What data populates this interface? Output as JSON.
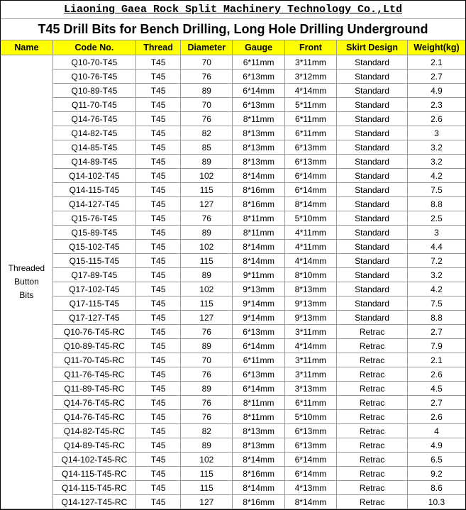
{
  "company": "Liaoning Gaea Rock Split Machinery Technology Co.,Ltd",
  "title": "T45 Drill Bits for Bench Drilling, Long Hole Drilling Underground",
  "columns": [
    "Name",
    "Code No.",
    "Thread",
    "Diameter",
    "Gauge",
    "Front",
    "Skirt Design",
    "Weight(kg)"
  ],
  "category_name": "Threaded\nButton\nBits",
  "rows": [
    {
      "code": "Q10-70-T45",
      "thread": "T45",
      "diameter": "70",
      "gauge": "6*11mm",
      "front": "3*11mm",
      "skirt": "Standard",
      "weight": "2.1"
    },
    {
      "code": "Q10-76-T45",
      "thread": "T45",
      "diameter": "76",
      "gauge": "6*13mm",
      "front": "3*12mm",
      "skirt": "Standard",
      "weight": "2.7"
    },
    {
      "code": "Q10-89-T45",
      "thread": "T45",
      "diameter": "89",
      "gauge": "6*14mm",
      "front": "4*14mm",
      "skirt": "Standard",
      "weight": "4.9"
    },
    {
      "code": "Q11-70-T45",
      "thread": "T45",
      "diameter": "70",
      "gauge": "6*13mm",
      "front": "5*11mm",
      "skirt": "Standard",
      "weight": "2.3"
    },
    {
      "code": "Q14-76-T45",
      "thread": "T45",
      "diameter": "76",
      "gauge": "8*11mm",
      "front": "6*11mm",
      "skirt": "Standard",
      "weight": "2.6"
    },
    {
      "code": "Q14-82-T45",
      "thread": "T45",
      "diameter": "82",
      "gauge": "8*13mm",
      "front": "6*11mm",
      "skirt": "Standard",
      "weight": "3"
    },
    {
      "code": "Q14-85-T45",
      "thread": "T45",
      "diameter": "85",
      "gauge": "8*13mm",
      "front": "6*13mm",
      "skirt": "Standard",
      "weight": "3.2"
    },
    {
      "code": "Q14-89-T45",
      "thread": "T45",
      "diameter": "89",
      "gauge": "8*13mm",
      "front": "6*13mm",
      "skirt": "Standard",
      "weight": "3.2"
    },
    {
      "code": "Q14-102-T45",
      "thread": "T45",
      "diameter": "102",
      "gauge": "8*14mm",
      "front": "6*14mm",
      "skirt": "Standard",
      "weight": "4.2"
    },
    {
      "code": "Q14-115-T45",
      "thread": "T45",
      "diameter": "115",
      "gauge": "8*16mm",
      "front": "6*14mm",
      "skirt": "Standard",
      "weight": "7.5"
    },
    {
      "code": "Q14-127-T45",
      "thread": "T45",
      "diameter": "127",
      "gauge": "8*16mm",
      "front": "8*14mm",
      "skirt": "Standard",
      "weight": "8.8"
    },
    {
      "code": "Q15-76-T45",
      "thread": "T45",
      "diameter": "76",
      "gauge": "8*11mm",
      "front": "5*10mm",
      "skirt": "Standard",
      "weight": "2.5"
    },
    {
      "code": "Q15-89-T45",
      "thread": "T45",
      "diameter": "89",
      "gauge": "8*11mm",
      "front": "4*11mm",
      "skirt": "Standard",
      "weight": "3"
    },
    {
      "code": "Q15-102-T45",
      "thread": "T45",
      "diameter": "102",
      "gauge": "8*14mm",
      "front": "4*11mm",
      "skirt": "Standard",
      "weight": "4.4"
    },
    {
      "code": "Q15-115-T45",
      "thread": "T45",
      "diameter": "115",
      "gauge": "8*14mm",
      "front": "4*14mm",
      "skirt": "Standard",
      "weight": "7.2"
    },
    {
      "code": "Q17-89-T45",
      "thread": "T45",
      "diameter": "89",
      "gauge": "9*11mm",
      "front": "8*10mm",
      "skirt": "Standard",
      "weight": "3.2"
    },
    {
      "code": "Q17-102-T45",
      "thread": "T45",
      "diameter": "102",
      "gauge": "9*13mm",
      "front": "8*13mm",
      "skirt": "Standard",
      "weight": "4.2"
    },
    {
      "code": "Q17-115-T45",
      "thread": "T45",
      "diameter": "115",
      "gauge": "9*14mm",
      "front": "9*13mm",
      "skirt": "Standard",
      "weight": "7.5"
    },
    {
      "code": "Q17-127-T45",
      "thread": "T45",
      "diameter": "127",
      "gauge": "9*14mm",
      "front": "9*13mm",
      "skirt": "Standard",
      "weight": "8.8"
    },
    {
      "code": "Q10-76-T45-RC",
      "thread": "T45",
      "diameter": "76",
      "gauge": "6*13mm",
      "front": "3*11mm",
      "skirt": "Retrac",
      "weight": "2.7"
    },
    {
      "code": "Q10-89-T45-RC",
      "thread": "T45",
      "diameter": "89",
      "gauge": "6*14mm",
      "front": "4*14mm",
      "skirt": "Retrac",
      "weight": "7.9"
    },
    {
      "code": "Q11-70-T45-RC",
      "thread": "T45",
      "diameter": "70",
      "gauge": "6*11mm",
      "front": "3*11mm",
      "skirt": "Retrac",
      "weight": "2.1"
    },
    {
      "code": "Q11-76-T45-RC",
      "thread": "T45",
      "diameter": "76",
      "gauge": "6*13mm",
      "front": "3*11mm",
      "skirt": "Retrac",
      "weight": "2.6"
    },
    {
      "code": "Q11-89-T45-RC",
      "thread": "T45",
      "diameter": "89",
      "gauge": "6*14mm",
      "front": "3*13mm",
      "skirt": "Retrac",
      "weight": "4.5"
    },
    {
      "code": "Q14-76-T45-RC",
      "thread": "T45",
      "diameter": "76",
      "gauge": "8*11mm",
      "front": "6*11mm",
      "skirt": "Retrac",
      "weight": "2.7"
    },
    {
      "code": "Q14-76-T45-RC",
      "thread": "T45",
      "diameter": "76",
      "gauge": "8*11mm",
      "front": "5*10mm",
      "skirt": "Retrac",
      "weight": "2.6"
    },
    {
      "code": "Q14-82-T45-RC",
      "thread": "T45",
      "diameter": "82",
      "gauge": "8*13mm",
      "front": "6*13mm",
      "skirt": "Retrac",
      "weight": "4"
    },
    {
      "code": "Q14-89-T45-RC",
      "thread": "T45",
      "diameter": "89",
      "gauge": "8*13mm",
      "front": "6*13mm",
      "skirt": "Retrac",
      "weight": "4.9"
    },
    {
      "code": "Q14-102-T45-RC",
      "thread": "T45",
      "diameter": "102",
      "gauge": "8*14mm",
      "front": "6*14mm",
      "skirt": "Retrac",
      "weight": "6.5"
    },
    {
      "code": "Q14-115-T45-RC",
      "thread": "T45",
      "diameter": "115",
      "gauge": "8*16mm",
      "front": "6*14mm",
      "skirt": "Retrac",
      "weight": "9.2"
    },
    {
      "code": "Q14-115-T45-RC",
      "thread": "T45",
      "diameter": "115",
      "gauge": "8*14mm",
      "front": "4*13mm",
      "skirt": "Retrac",
      "weight": "8.6"
    },
    {
      "code": "Q14-127-T45-RC",
      "thread": "T45",
      "diameter": "127",
      "gauge": "8*16mm",
      "front": "8*14mm",
      "skirt": "Retrac",
      "weight": "10.3"
    }
  ],
  "styling": {
    "header_bg": "#ffff00",
    "border_color": "#999999",
    "outer_border": "#000000",
    "font_size_body": 12,
    "font_size_title": 18,
    "font_size_company": 15
  }
}
